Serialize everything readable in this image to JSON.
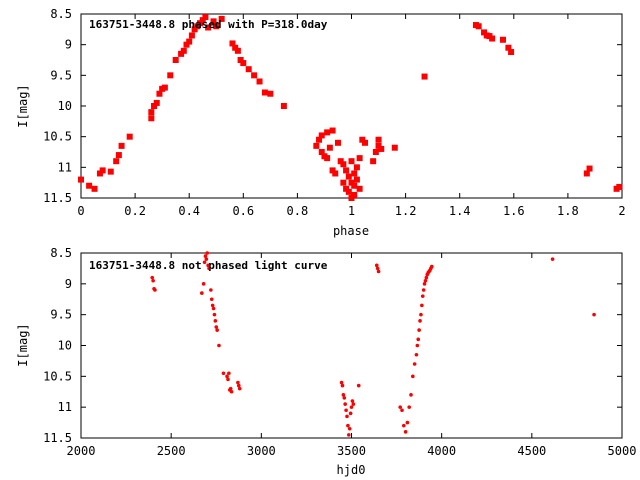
{
  "chart_data": [
    {
      "type": "scatter",
      "title": "163751-3448.8 phased with P=318.0day",
      "xlabel": "phase",
      "ylabel": "I[mag]",
      "xlim": [
        0,
        2
      ],
      "ylim": [
        11.5,
        8.5
      ],
      "x_ticks": [
        "0",
        "0.2",
        "0.4",
        "0.6",
        "0.8",
        "1",
        "1.2",
        "1.4",
        "1.6",
        "1.8",
        "2"
      ],
      "y_ticks": [
        "8.5",
        "9",
        "9.5",
        "10",
        "10.5",
        "11",
        "11.5"
      ],
      "marker_color": "#ff0000",
      "marker": "square",
      "grid": false,
      "series": [
        {
          "x": [
            0.0,
            0.03,
            0.05,
            0.07,
            0.08,
            0.11,
            0.13,
            0.14,
            0.15,
            0.18,
            0.26,
            0.26,
            0.27,
            0.28,
            0.29,
            0.3,
            0.31,
            0.33,
            0.35,
            0.37,
            0.38,
            0.39,
            0.4,
            0.41,
            0.42,
            0.43,
            0.44,
            0.45,
            0.46,
            0.47,
            0.49,
            0.5,
            0.52,
            0.56,
            0.57,
            0.58,
            0.59,
            0.6,
            0.62,
            0.64,
            0.66,
            0.68,
            0.7,
            0.75,
            0.87,
            0.88,
            0.89,
            0.89,
            0.9,
            0.91,
            0.91,
            0.92,
            0.93,
            0.93,
            0.94,
            0.95,
            0.96,
            0.97,
            0.97,
            0.98,
            0.98,
            0.99,
            0.99,
            1.0,
            1.0,
            1.0,
            1.01,
            1.01,
            1.01,
            1.02,
            1.02,
            1.03,
            1.03,
            1.04,
            1.05,
            1.08,
            1.09,
            1.1,
            1.1,
            1.11,
            1.16,
            1.27,
            1.46,
            1.47,
            1.49,
            1.5,
            1.51,
            1.52,
            1.56,
            1.58,
            1.59,
            1.87,
            1.88,
            1.98,
            1.99
          ],
          "y": [
            11.2,
            11.3,
            11.35,
            11.1,
            11.05,
            11.07,
            10.9,
            10.8,
            10.65,
            10.5,
            10.2,
            10.1,
            10.0,
            9.95,
            9.8,
            9.72,
            9.7,
            9.5,
            9.25,
            9.15,
            9.1,
            9.0,
            8.95,
            8.85,
            8.75,
            8.7,
            8.65,
            8.6,
            8.55,
            8.72,
            8.62,
            8.7,
            8.58,
            8.98,
            9.05,
            9.1,
            9.25,
            9.3,
            9.4,
            9.5,
            9.6,
            9.78,
            9.8,
            10.0,
            10.65,
            10.55,
            10.75,
            10.48,
            10.82,
            10.43,
            10.85,
            10.68,
            11.05,
            10.4,
            11.1,
            10.6,
            10.9,
            11.25,
            10.95,
            11.35,
            11.05,
            11.15,
            11.4,
            10.9,
            11.25,
            11.5,
            11.1,
            11.3,
            11.45,
            11.0,
            11.2,
            11.35,
            10.85,
            10.55,
            10.6,
            10.9,
            10.75,
            10.55,
            10.65,
            10.7,
            10.68,
            9.52,
            8.68,
            8.7,
            8.8,
            8.85,
            8.86,
            8.9,
            8.92,
            9.05,
            9.12,
            11.1,
            11.02,
            11.35,
            11.32
          ]
        }
      ]
    },
    {
      "type": "scatter",
      "title": "163751-3448.8 not phased light curve",
      "xlabel": "hjd0",
      "ylabel": "I[mag]",
      "xlim": [
        2000,
        5000
      ],
      "ylim": [
        11.5,
        8.5
      ],
      "x_ticks": [
        "2000",
        "2500",
        "3000",
        "3500",
        "4000",
        "4500",
        "5000"
      ],
      "y_ticks": [
        "8.5",
        "9",
        "9.5",
        "10",
        "10.5",
        "11",
        "11.5"
      ],
      "marker_color": "#ff0000",
      "marker": "dot",
      "grid": false,
      "series": [
        {
          "x": [
            2395,
            2400,
            2405,
            2410,
            2670,
            2680,
            2685,
            2690,
            2695,
            2700,
            2705,
            2710,
            2720,
            2725,
            2730,
            2735,
            2740,
            2745,
            2750,
            2755,
            2765,
            2790,
            2810,
            2815,
            2820,
            2825,
            2830,
            2835,
            2870,
            2875,
            2880,
            3445,
            3450,
            3455,
            3460,
            3465,
            3470,
            3475,
            3480,
            3485,
            3490,
            3495,
            3500,
            3505,
            3510,
            3540,
            3640,
            3645,
            3650,
            3770,
            3780,
            3790,
            3800,
            3810,
            3820,
            3830,
            3840,
            3850,
            3860,
            3865,
            3870,
            3875,
            3880,
            3885,
            3890,
            3895,
            3900,
            3905,
            3910,
            3915,
            3920,
            3925,
            3930,
            3935,
            3940,
            3945,
            4615,
            4845
          ],
          "y": [
            8.9,
            8.95,
            9.08,
            9.1,
            9.15,
            9.0,
            8.65,
            8.55,
            8.6,
            8.5,
            8.7,
            8.75,
            9.1,
            9.25,
            9.35,
            9.4,
            9.5,
            9.6,
            9.7,
            9.75,
            10.0,
            10.45,
            10.5,
            10.55,
            10.45,
            10.72,
            10.7,
            10.75,
            10.6,
            10.65,
            10.7,
            10.6,
            10.65,
            10.8,
            10.85,
            10.95,
            11.05,
            11.15,
            11.3,
            11.45,
            11.35,
            11.1,
            11.0,
            10.9,
            10.95,
            10.65,
            8.7,
            8.75,
            8.8,
            11.0,
            11.05,
            11.3,
            11.4,
            11.25,
            11.0,
            10.8,
            10.5,
            10.3,
            10.15,
            10.0,
            9.9,
            9.75,
            9.6,
            9.5,
            9.35,
            9.2,
            9.1,
            9.0,
            8.95,
            8.9,
            8.85,
            8.82,
            8.8,
            8.78,
            8.75,
            8.72,
            8.6,
            9.5
          ]
        }
      ]
    }
  ]
}
